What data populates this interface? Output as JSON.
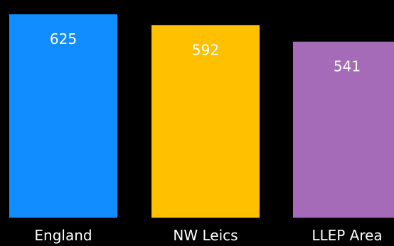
{
  "chart_data": {
    "type": "bar",
    "categories": [
      "England",
      "NW Leics",
      "LLEP Area"
    ],
    "values": [
      625,
      592,
      541
    ],
    "data_labels": [
      "625",
      "592",
      "541"
    ],
    "colors": [
      "#118dff",
      "#ffc000",
      "#a66bb8"
    ],
    "label_color": "#ffffff",
    "background": "#000000",
    "title": "",
    "xlabel": "",
    "ylabel": "",
    "grid": false,
    "legend": false
  }
}
